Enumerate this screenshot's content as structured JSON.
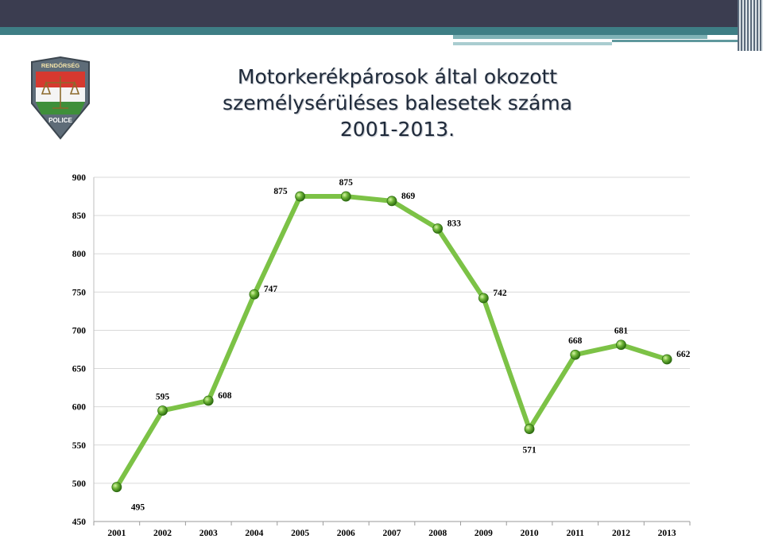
{
  "title_lines": [
    "Motorkerékpárosok által okozott",
    "személysérüléses balesetek száma",
    "2001-2013."
  ],
  "logo": {
    "top_text": "RENDŐRSÉG",
    "bottom_text": "POLICE"
  },
  "colors": {
    "line": "#7cc246",
    "marker": "#5aa52c",
    "grid": "#d9d9d9",
    "header_dark": "#3b3d50",
    "header_teal": "#3e7e85"
  },
  "chart_data": {
    "type": "line",
    "title": "",
    "xlabel": "",
    "ylabel": "",
    "categories": [
      "2001",
      "2002",
      "2003",
      "2004",
      "2005",
      "2006",
      "2007",
      "2008",
      "2009",
      "2010",
      "2011",
      "2012",
      "2013"
    ],
    "values": [
      495,
      595,
      608,
      747,
      875,
      875,
      869,
      833,
      742,
      571,
      668,
      681,
      662
    ],
    "ylim": [
      450,
      900
    ],
    "yticks": [
      450,
      500,
      550,
      600,
      650,
      700,
      750,
      800,
      850,
      900
    ],
    "grid": true,
    "legend": "none",
    "data_labels": true
  }
}
